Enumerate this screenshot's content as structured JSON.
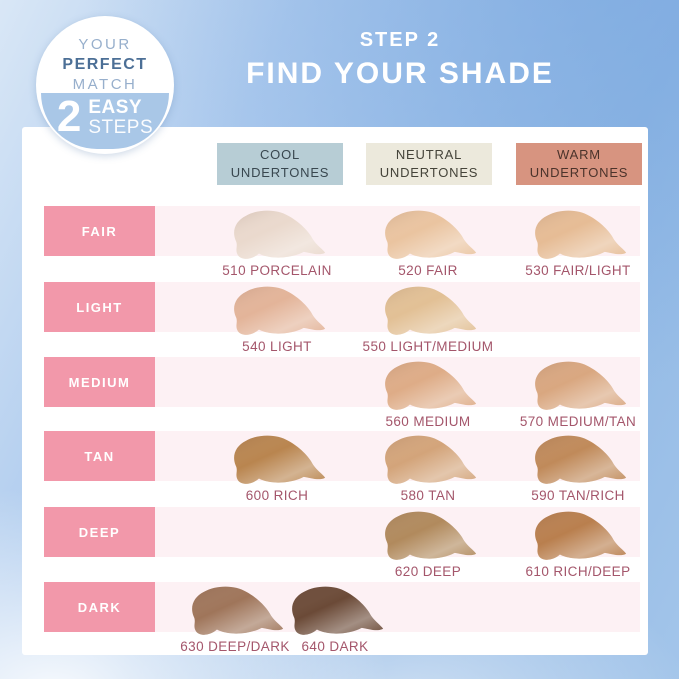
{
  "badge": {
    "top": [
      "YOUR",
      "PERFECT",
      "MATCH"
    ],
    "number": "2",
    "steps": [
      "EASY",
      "STEPS"
    ]
  },
  "title": {
    "step": "STEP 2",
    "headline": "FIND YOUR SHADE"
  },
  "columns": [
    {
      "id": "cool",
      "label": [
        "COOL",
        "UNDERTONES"
      ],
      "bg": "#b7cdd5",
      "fg": "#39474f"
    },
    {
      "id": "neutral",
      "label": [
        "NEUTRAL",
        "UNDERTONES"
      ],
      "bg": "#ece9dc",
      "fg": "#45443a"
    },
    {
      "id": "warm",
      "label": [
        "WARM",
        "UNDERTONES"
      ],
      "bg": "#d79480",
      "fg": "#4b332b"
    }
  ],
  "rows": [
    {
      "label": "FAIR",
      "cells": [
        {
          "label": "510 PORCELAIN",
          "color": "#ead9cd",
          "empty": "false"
        },
        {
          "label": "520 FAIR",
          "color": "#eac4a0",
          "empty": "false"
        },
        {
          "label": "530 FAIR/LIGHT",
          "color": "#e6bc95",
          "empty": "false"
        }
      ]
    },
    {
      "label": "LIGHT",
      "cells": [
        {
          "label": "540 LIGHT",
          "color": "#e3b499",
          "empty": "false"
        },
        {
          "label": "550 LIGHT/MEDIUM",
          "color": "#e2c095",
          "empty": "false"
        },
        {
          "empty": "true"
        }
      ]
    },
    {
      "label": "MEDIUM",
      "cells": [
        {
          "empty": "true"
        },
        {
          "label": "560 MEDIUM",
          "color": "#deac87",
          "empty": "false"
        },
        {
          "label": "570 MEDIUM/TAN",
          "color": "#d9a780",
          "empty": "false"
        }
      ]
    },
    {
      "label": "TAN",
      "cells": [
        {
          "label": "600 RICH",
          "color": "#b9854f",
          "empty": "false"
        },
        {
          "label": "580 TAN",
          "color": "#d3a47a",
          "empty": "false"
        },
        {
          "label": "590 TAN/RICH",
          "color": "#c08a5a",
          "empty": "false"
        }
      ]
    },
    {
      "label": "DEEP",
      "cells": [
        {
          "empty": "true"
        },
        {
          "label": "620 DEEP",
          "color": "#b18a5d",
          "empty": "false"
        },
        {
          "label": "610 RICH/DEEP",
          "color": "#b97f4e",
          "empty": "false"
        }
      ]
    },
    {
      "label": "DARK",
      "cells": [
        {
          "label": "630 DEEP/DARK",
          "color": "#9f755a",
          "empty": "false"
        },
        {
          "label": "640 DARK",
          "color": "#6b4a37",
          "empty": "false"
        }
      ]
    }
  ],
  "colors": {
    "row_label_bg": "#f298aa",
    "row_stripe": "#fdf1f4",
    "shade_label": "#a4566b",
    "panel": "#ffffff",
    "badge_blue": "#a9c7e7",
    "sky": "#8fb7e4",
    "title_text": "#ffffff"
  },
  "chart_data": {
    "type": "table",
    "title": "FIND YOUR SHADE",
    "subtitle": "STEP 2",
    "columns": [
      "COOL UNDERTONES",
      "NEUTRAL UNDERTONES",
      "WARM UNDERTONES"
    ],
    "row_labels": [
      "FAIR",
      "LIGHT",
      "MEDIUM",
      "TAN",
      "DEEP",
      "DARK"
    ],
    "cells": [
      [
        "510 PORCELAIN",
        "520 FAIR",
        "530 FAIR/LIGHT"
      ],
      [
        "540 LIGHT",
        "550 LIGHT/MEDIUM",
        null
      ],
      [
        null,
        "560 MEDIUM",
        "570 MEDIUM/TAN"
      ],
      [
        "600 RICH",
        "580 TAN",
        "590 TAN/RICH"
      ],
      [
        null,
        "620 DEEP",
        "610 RICH/DEEP"
      ],
      [
        "630 DEEP/DARK",
        "640 DARK",
        null
      ]
    ]
  }
}
